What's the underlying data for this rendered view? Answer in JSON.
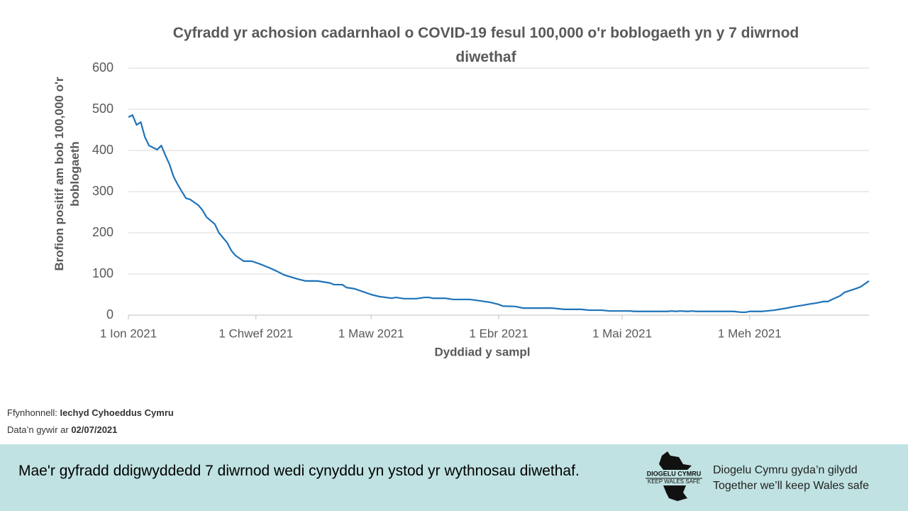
{
  "chart_data": {
    "type": "line",
    "title": "Cyfradd yr achosion cadarnhaol o COVID-19 fesul 100,000 o'r boblogaeth yn y 7 diwrnod diwethaf",
    "x_label": "Dyddiad y sampl",
    "y_label": "Brofion positif  am bob 100,000 o'r boblogaeth",
    "x": [
      "2021-01-01",
      "2021-01-02",
      "2021-01-03",
      "2021-01-04",
      "2021-01-05",
      "2021-01-06",
      "2021-01-08",
      "2021-01-09",
      "2021-01-10",
      "2021-01-11",
      "2021-01-12",
      "2021-01-13",
      "2021-01-14",
      "2021-01-15",
      "2021-01-16",
      "2021-01-18",
      "2021-01-19",
      "2021-01-20",
      "2021-01-22",
      "2021-01-23",
      "2021-01-25",
      "2021-01-26",
      "2021-01-27",
      "2021-01-29",
      "2021-01-31",
      "2021-02-02",
      "2021-02-04",
      "2021-02-06",
      "2021-02-08",
      "2021-02-11",
      "2021-02-13",
      "2021-02-16",
      "2021-02-19",
      "2021-02-20",
      "2021-02-22",
      "2021-02-23",
      "2021-02-25",
      "2021-02-27",
      "2021-03-01",
      "2021-03-03",
      "2021-03-06",
      "2021-03-07",
      "2021-03-09",
      "2021-03-12",
      "2021-03-14",
      "2021-03-15",
      "2021-03-16",
      "2021-03-19",
      "2021-03-21",
      "2021-03-25",
      "2021-03-28",
      "2021-03-30",
      "2021-04-01",
      "2021-04-02",
      "2021-04-05",
      "2021-04-07",
      "2021-04-14",
      "2021-04-15",
      "2021-04-17",
      "2021-04-21",
      "2021-04-23",
      "2021-04-26",
      "2021-04-28",
      "2021-05-03",
      "2021-05-04",
      "2021-05-12",
      "2021-05-13",
      "2021-05-14",
      "2021-05-15",
      "2021-05-17",
      "2021-05-18",
      "2021-05-19",
      "2021-05-28",
      "2021-05-30",
      "2021-05-31",
      "2021-06-01",
      "2021-06-04",
      "2021-06-05",
      "2021-06-07",
      "2021-06-10",
      "2021-06-12",
      "2021-06-14",
      "2021-06-15",
      "2021-06-17",
      "2021-06-19",
      "2021-06-20",
      "2021-06-21",
      "2021-06-23",
      "2021-06-24",
      "2021-06-27",
      "2021-06-28",
      "2021-06-29",
      "2021-06-30"
    ],
    "series": [
      {
        "color": "#1f73b9",
        "values": [
          481,
          486,
          462,
          469,
          433,
          412,
          402,
          412,
          388,
          366,
          336,
          317,
          300,
          284,
          281,
          267,
          255,
          238,
          221,
          200,
          176,
          157,
          145,
          131,
          131,
          124,
          116,
          107,
          97,
          88,
          83,
          83,
          78,
          74,
          74,
          67,
          64,
          57,
          50,
          45,
          41,
          43,
          40,
          40,
          43,
          43,
          41,
          41,
          38,
          38,
          34,
          31,
          26,
          22,
          21,
          17,
          17,
          16,
          14,
          14,
          12,
          12,
          10,
          10,
          9,
          9,
          10,
          9,
          10,
          9,
          10,
          9,
          9,
          7,
          7,
          9,
          9,
          10,
          12,
          17,
          21,
          24,
          26,
          29,
          33,
          33,
          38,
          47,
          55,
          65,
          69,
          76,
          83
        ]
      }
    ],
    "xlim": [
      "2021-01-01",
      "2021-06-30"
    ],
    "xticks": [
      {
        "value": "2021-01-01",
        "label": "1 Ion 2021"
      },
      {
        "value": "2021-02-01",
        "label": "1 Chwef 2021"
      },
      {
        "value": "2021-03-01",
        "label": "1 Maw 2021"
      },
      {
        "value": "2021-04-01",
        "label": "1 Ebr 2021"
      },
      {
        "value": "2021-05-01",
        "label": "1 Mai 2021"
      },
      {
        "value": "2021-06-01",
        "label": "1 Meh 2021"
      }
    ],
    "ylim": [
      0,
      600
    ],
    "yticks": [
      0,
      100,
      200,
      300,
      400,
      500,
      600
    ],
    "grid": true
  },
  "source": {
    "label": "Ffynhonnell:",
    "name": "Iechyd Cyhoeddus Cymru",
    "date_label": "Data’n gywir ar",
    "date": "02/07/2021"
  },
  "footer": {
    "message": "Mae'r gyfradd ddigwyddedd 7 diwrnod wedi cynyddu yn ystod yr wythnosau diwethaf.",
    "logo_top": "DIOGELU CYMRU",
    "logo_bottom": "KEEP WALES SAFE",
    "tagline_cy": "Diogelu Cymru gyda’n gilydd",
    "tagline_en": "Together we’ll keep Wales safe"
  }
}
